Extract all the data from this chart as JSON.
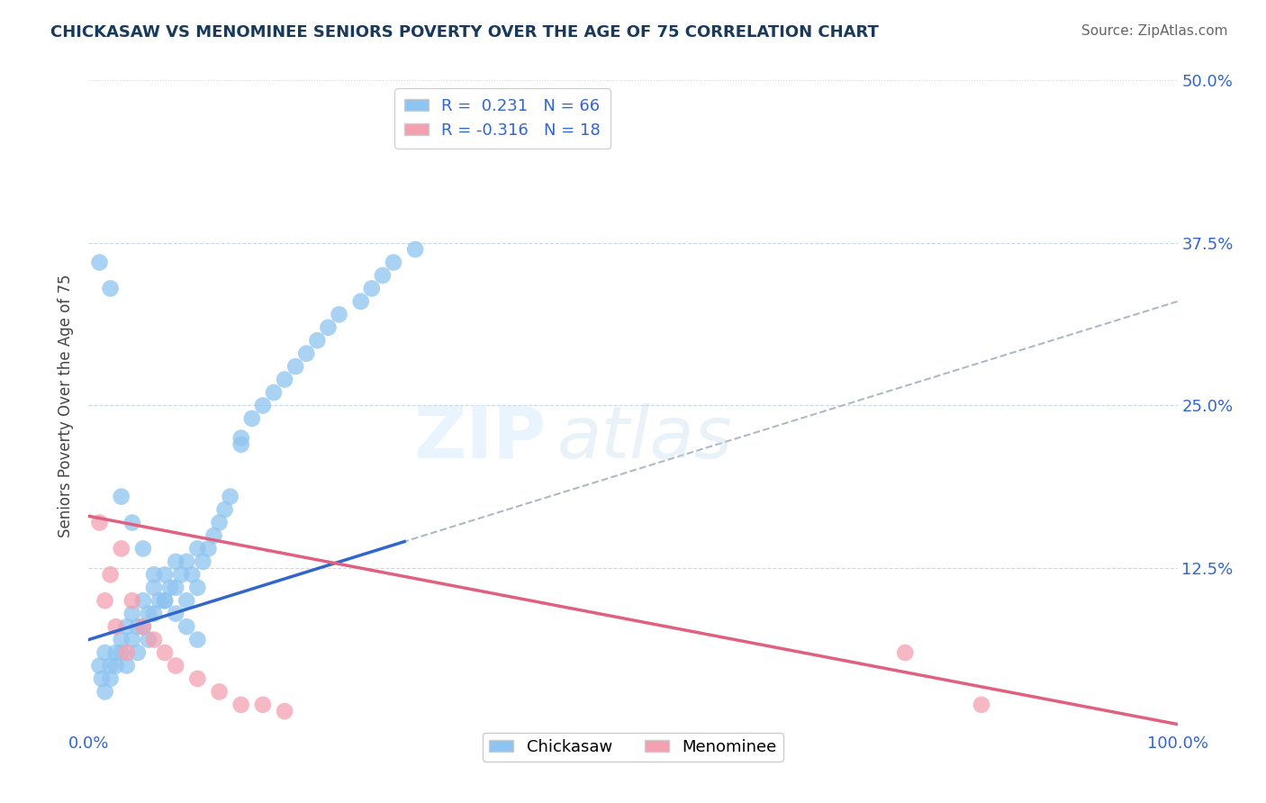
{
  "title": "CHICKASAW VS MENOMINEE SENIORS POVERTY OVER THE AGE OF 75 CORRELATION CHART",
  "source": "Source: ZipAtlas.com",
  "ylabel": "Seniors Poverty Over the Age of 75",
  "xlim": [
    0,
    100
  ],
  "ylim": [
    0,
    50
  ],
  "legend_label1": "R =  0.231   N = 66",
  "legend_label2": "R = -0.316   N = 18",
  "chickasaw_color": "#8ec4f0",
  "menominee_color": "#f4a0b0",
  "trend_chickasaw_color": "#3366cc",
  "trend_menominee_color": "#e06080",
  "trend_dashed_color": "#b0b8c8",
  "chickasaw_x": [
    1.0,
    1.2,
    1.5,
    1.5,
    2.0,
    2.0,
    2.5,
    2.5,
    3.0,
    3.0,
    3.5,
    3.5,
    4.0,
    4.0,
    4.5,
    4.5,
    5.0,
    5.0,
    5.5,
    5.5,
    6.0,
    6.0,
    6.5,
    7.0,
    7.0,
    7.5,
    8.0,
    8.0,
    8.5,
    9.0,
    9.0,
    9.5,
    10.0,
    10.0,
    10.5,
    11.0,
    11.5,
    12.0,
    12.5,
    13.0,
    14.0,
    14.0,
    15.0,
    16.0,
    17.0,
    18.0,
    19.0,
    20.0,
    21.0,
    22.0,
    23.0,
    25.0,
    26.0,
    27.0,
    28.0,
    30.0,
    1.0,
    2.0,
    3.0,
    4.0,
    5.0,
    6.0,
    7.0,
    8.0,
    9.0,
    10.0
  ],
  "chickasaw_y": [
    5.0,
    4.0,
    6.0,
    3.0,
    5.0,
    4.0,
    6.0,
    5.0,
    7.0,
    6.0,
    8.0,
    5.0,
    9.0,
    7.0,
    8.0,
    6.0,
    10.0,
    8.0,
    9.0,
    7.0,
    11.0,
    9.0,
    10.0,
    12.0,
    10.0,
    11.0,
    13.0,
    11.0,
    12.0,
    13.0,
    10.0,
    12.0,
    14.0,
    11.0,
    13.0,
    14.0,
    15.0,
    16.0,
    17.0,
    18.0,
    22.0,
    22.5,
    24.0,
    25.0,
    26.0,
    27.0,
    28.0,
    29.0,
    30.0,
    31.0,
    32.0,
    33.0,
    34.0,
    35.0,
    36.0,
    37.0,
    36.0,
    34.0,
    18.0,
    16.0,
    14.0,
    12.0,
    10.0,
    9.0,
    8.0,
    7.0
  ],
  "menominee_x": [
    1.0,
    1.5,
    2.0,
    2.5,
    3.0,
    3.5,
    4.0,
    5.0,
    6.0,
    7.0,
    8.0,
    10.0,
    12.0,
    14.0,
    16.0,
    18.0,
    75.0,
    82.0
  ],
  "menominee_y": [
    16.0,
    10.0,
    12.0,
    8.0,
    14.0,
    6.0,
    10.0,
    8.0,
    7.0,
    6.0,
    5.0,
    4.0,
    3.0,
    2.0,
    2.0,
    1.5,
    6.0,
    2.0
  ],
  "R_chickasaw": 0.231,
  "N_chickasaw": 66,
  "R_menominee": -0.316,
  "N_menominee": 18,
  "chick_trend_x0": 0,
  "chick_trend_x1": 100,
  "chick_trend_y0": 7.0,
  "chick_trend_y1": 33.0,
  "chick_solid_x1": 29.0,
  "menom_trend_x0": 0,
  "menom_trend_x1": 100,
  "menom_trend_y0": 16.5,
  "menom_trend_y1": 0.5
}
